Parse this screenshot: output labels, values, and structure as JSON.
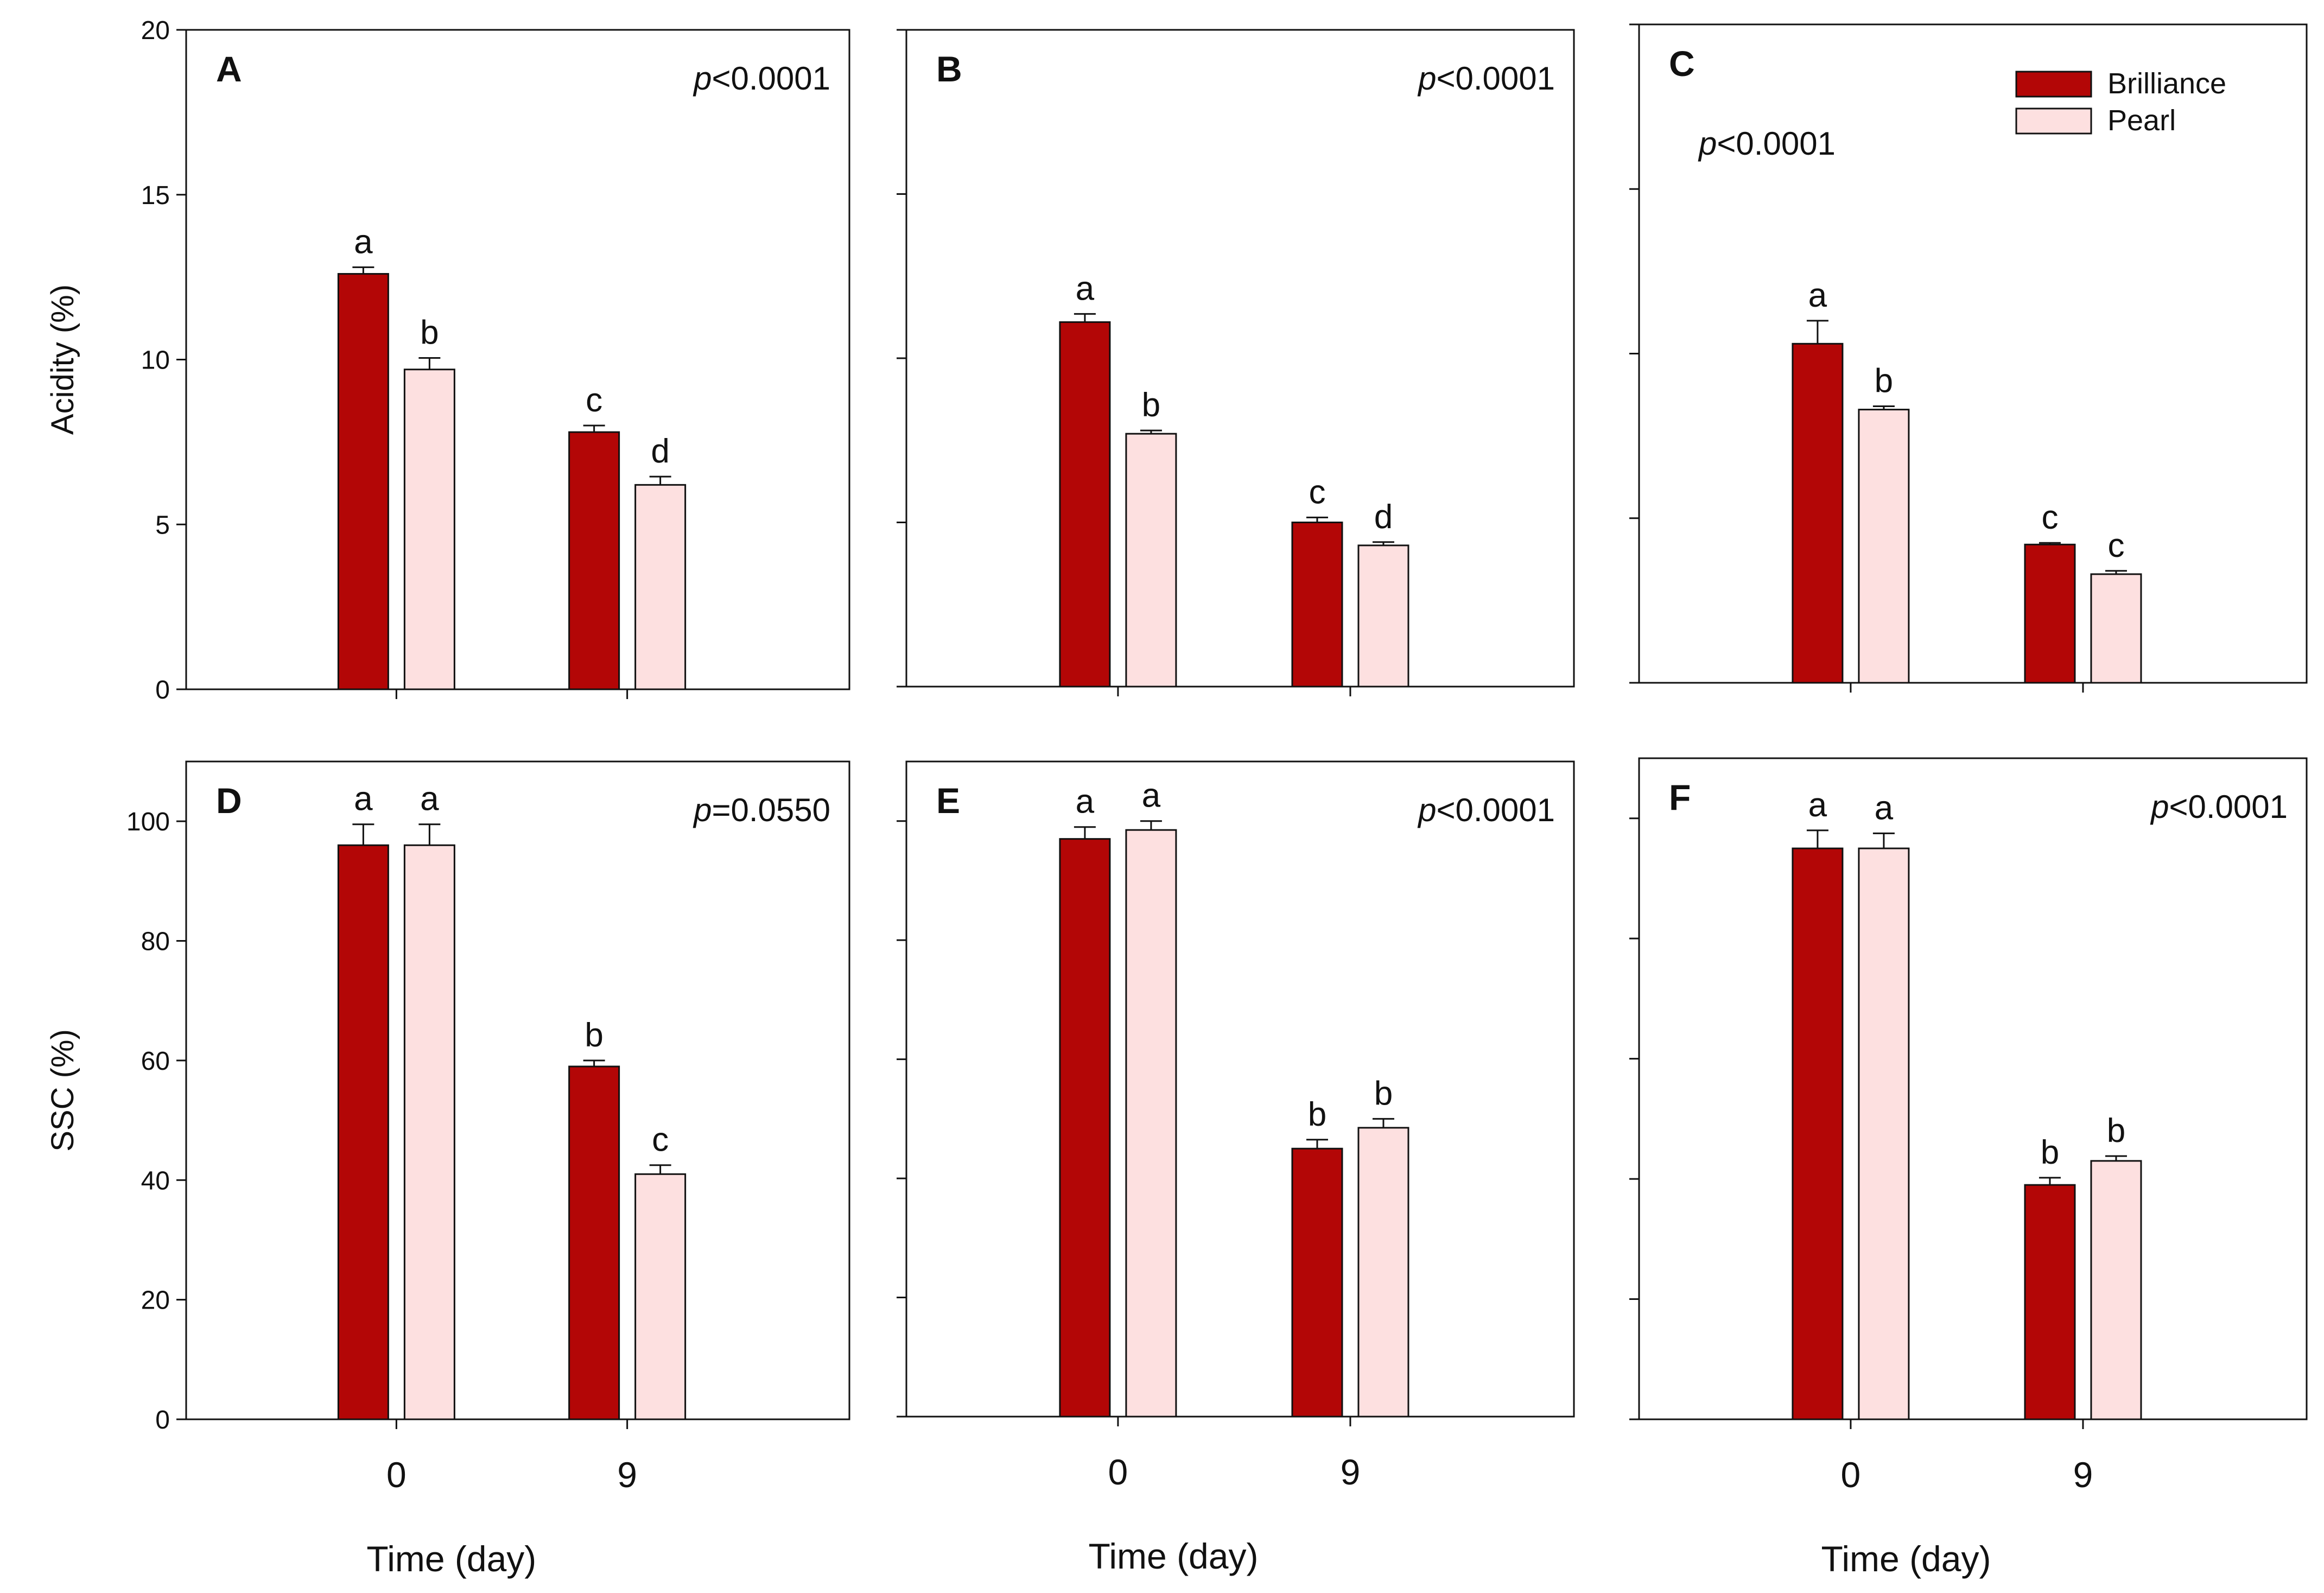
{
  "colors": {
    "brilliance": "#b30606",
    "pearl": "#fde0e0",
    "axis": "#111111"
  },
  "legend": {
    "items": [
      {
        "name": "Brilliance",
        "color_key": "brilliance"
      },
      {
        "name": "Pearl",
        "color_key": "pearl"
      }
    ]
  },
  "chart_data": [
    {
      "panel": "A",
      "type": "bar",
      "ylabel": "Acidity (%)",
      "xlabel": "",
      "ylim": [
        0,
        20
      ],
      "yticks": [
        0,
        5,
        10,
        15,
        20
      ],
      "show_tick_labels": true,
      "categories": [
        "0",
        "9"
      ],
      "p_prefix": "p",
      "p_rest": "<0.0001",
      "series": [
        {
          "name": "Brilliance",
          "values": [
            12.6,
            7.8
          ],
          "errors": [
            0.2,
            0.2
          ],
          "letters": [
            "a",
            "c"
          ]
        },
        {
          "name": "Pearl",
          "values": [
            9.7,
            6.2
          ],
          "errors": [
            0.35,
            0.25
          ],
          "letters": [
            "b",
            "d"
          ]
        }
      ]
    },
    {
      "panel": "B",
      "type": "bar",
      "ylabel": "",
      "xlabel": "",
      "ylim": [
        0,
        20
      ],
      "yticks": [
        0,
        5,
        10,
        15,
        20
      ],
      "show_tick_labels": false,
      "categories": [
        "0",
        "9"
      ],
      "p_prefix": "p",
      "p_rest": "<0.0001",
      "series": [
        {
          "name": "Brilliance",
          "values": [
            11.1,
            5.0
          ],
          "errors": [
            0.25,
            0.15
          ],
          "letters": [
            "a",
            "c"
          ]
        },
        {
          "name": "Pearl",
          "values": [
            7.7,
            4.3
          ],
          "errors": [
            0.1,
            0.1
          ],
          "letters": [
            "b",
            "d"
          ]
        }
      ]
    },
    {
      "panel": "C",
      "type": "bar",
      "ylabel": "",
      "xlabel": "",
      "ylim": [
        0,
        20
      ],
      "yticks": [
        0,
        5,
        10,
        15,
        20
      ],
      "show_tick_labels": false,
      "categories": [
        "0",
        "9"
      ],
      "p_prefix": "p",
      "p_rest": "<0.0001",
      "series": [
        {
          "name": "Brilliance",
          "values": [
            10.3,
            4.2
          ],
          "errors": [
            0.7,
            0.05
          ],
          "letters": [
            "a",
            "c"
          ]
        },
        {
          "name": "Pearl",
          "values": [
            8.3,
            3.3
          ],
          "errors": [
            0.1,
            0.1
          ],
          "letters": [
            "b",
            "c"
          ]
        }
      ]
    },
    {
      "panel": "D",
      "type": "bar",
      "ylabel": "SSC (%)",
      "xlabel": "Time (day)",
      "ylim": [
        0,
        110
      ],
      "yticks": [
        0,
        20,
        40,
        60,
        80,
        100
      ],
      "show_tick_labels": true,
      "categories": [
        "0",
        "9"
      ],
      "p_prefix": "p",
      "p_rest": "=0.0550",
      "series": [
        {
          "name": "Brilliance",
          "values": [
            96,
            59
          ],
          "errors": [
            3.5,
            1
          ],
          "letters": [
            "a",
            "b"
          ]
        },
        {
          "name": "Pearl",
          "values": [
            96,
            41
          ],
          "errors": [
            3.5,
            1.5
          ],
          "letters": [
            "a",
            "c"
          ]
        }
      ]
    },
    {
      "panel": "E",
      "type": "bar",
      "ylabel": "",
      "xlabel": "Time (day)",
      "ylim": [
        0,
        110
      ],
      "yticks": [
        0,
        20,
        40,
        60,
        80,
        100
      ],
      "show_tick_labels": false,
      "categories": [
        "0",
        "9"
      ],
      "p_prefix": "p",
      "p_rest": "<0.0001",
      "series": [
        {
          "name": "Brilliance",
          "values": [
            97,
            45
          ],
          "errors": [
            2,
            1.5
          ],
          "letters": [
            "a",
            "b"
          ]
        },
        {
          "name": "Pearl",
          "values": [
            98.5,
            48.5
          ],
          "errors": [
            1.5,
            1.5
          ],
          "letters": [
            "a",
            "b"
          ]
        }
      ]
    },
    {
      "panel": "F",
      "type": "bar",
      "ylabel": "",
      "xlabel": "Time (day)",
      "ylim": [
        0,
        110
      ],
      "yticks": [
        0,
        20,
        40,
        60,
        80,
        100
      ],
      "show_tick_labels": false,
      "categories": [
        "0",
        "9"
      ],
      "p_prefix": "p",
      "p_rest": "<0.0001",
      "series": [
        {
          "name": "Brilliance",
          "values": [
            95,
            39
          ],
          "errors": [
            3,
            1.2
          ],
          "letters": [
            "a",
            "b"
          ]
        },
        {
          "name": "Pearl",
          "values": [
            95,
            43
          ],
          "errors": [
            2.5,
            0.8
          ],
          "letters": [
            "a",
            "b"
          ]
        }
      ]
    }
  ]
}
